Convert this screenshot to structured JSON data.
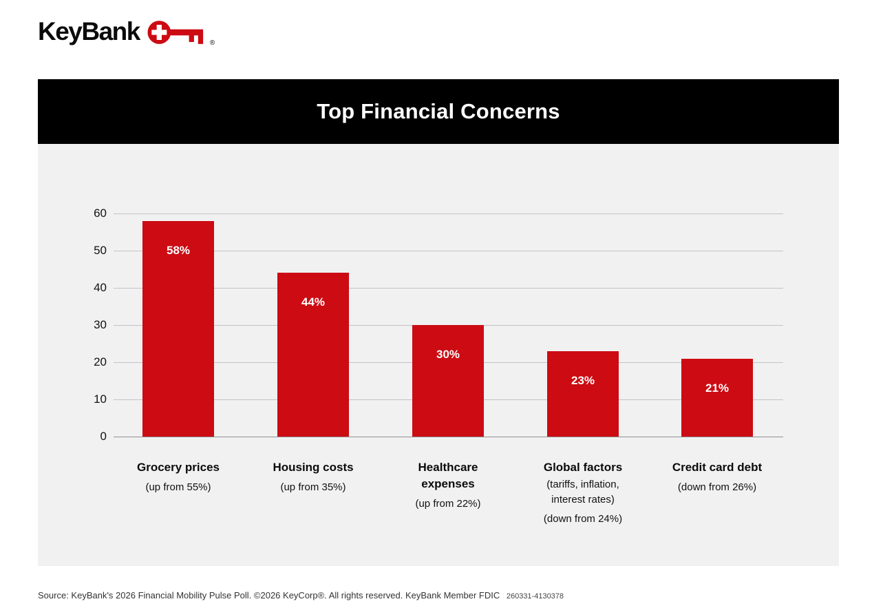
{
  "logo": {
    "text": "KeyBank",
    "registered": "®",
    "brand_red": "#cc0b13"
  },
  "chart_data": {
    "type": "bar",
    "title": "Top Financial Concerns",
    "categories": [
      {
        "name": "Grocery prices",
        "detail": "",
        "change": "(up from 55%)"
      },
      {
        "name": "Housing costs",
        "detail": "",
        "change": "(up from 35%)"
      },
      {
        "name": "Healthcare expenses",
        "detail": "",
        "change": "(up from 22%)"
      },
      {
        "name": "Global factors",
        "detail": "(tariffs, inflation, interest rates)",
        "change": "(down from 24%)"
      },
      {
        "name": "Credit card debt",
        "detail": "",
        "change": "(down from 26%)"
      }
    ],
    "values": [
      58,
      44,
      30,
      23,
      21
    ],
    "value_labels": [
      "58%",
      "44%",
      "30%",
      "23%",
      "21%"
    ],
    "ylim": [
      0,
      60
    ],
    "yticks": [
      0,
      10,
      20,
      30,
      40,
      50,
      60
    ],
    "grid": true,
    "legend": "none",
    "bar_color": "#cc0b13",
    "value_label_color": "#ffffff",
    "plot_background": "#f1f1f2",
    "title_bar_background": "#000000",
    "title_color": "#ffffff"
  },
  "footer": {
    "source": "Source: KeyBank's 2026 Financial Mobility Pulse Poll. ©2026 KeyCorp®. All rights reserved. KeyBank Member FDIC",
    "code": "260331-4130378"
  }
}
